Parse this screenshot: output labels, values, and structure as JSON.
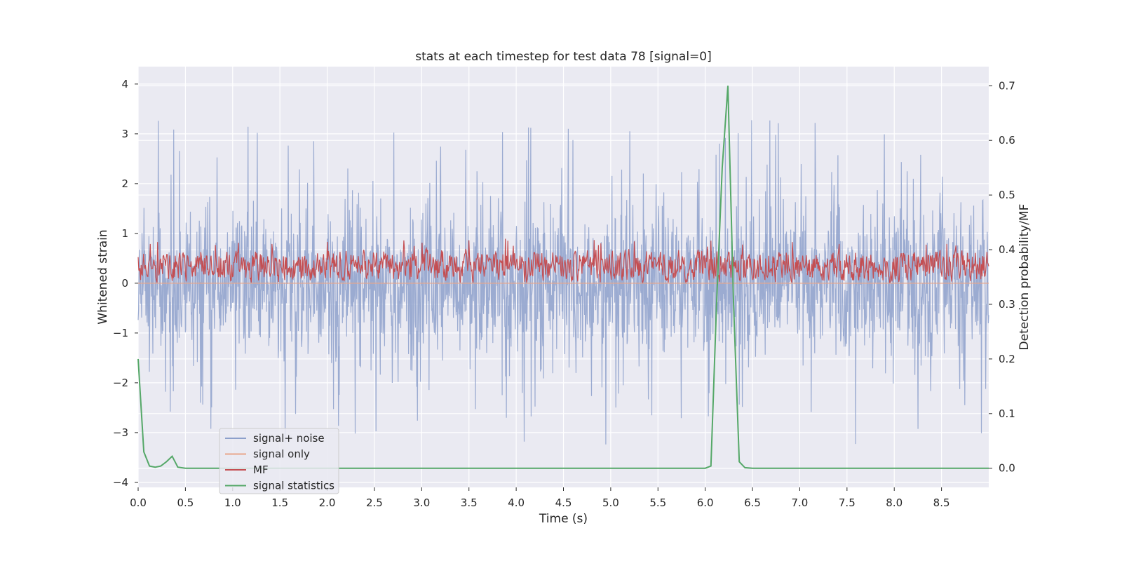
{
  "chart_data": {
    "type": "line",
    "title": "stats at each timestep for test data 78 [signal=0]",
    "xlabel": "Time (s)",
    "ylabel": "Whitened strain",
    "y2label": "Detection probability/MF",
    "xlim": [
      0.0,
      9.0
    ],
    "ylim": [
      -4.1,
      4.35
    ],
    "y2lim": [
      -0.035,
      0.735
    ],
    "xticks": [
      "0.0",
      "0.5",
      "1.0",
      "1.5",
      "2.0",
      "2.5",
      "3.0",
      "3.5",
      "4.0",
      "4.5",
      "5.0",
      "5.5",
      "6.0",
      "6.5",
      "7.0",
      "7.5",
      "8.0",
      "8.5"
    ],
    "yticks": [
      "4",
      "3",
      "2",
      "1",
      "0",
      "−1",
      "−2",
      "−3",
      "−4"
    ],
    "y2ticks": [
      "0.7",
      "0.6",
      "0.5",
      "0.4",
      "0.3",
      "0.2",
      "0.1",
      "0.0"
    ],
    "grid": true,
    "legend_position": "lower-left",
    "colors": {
      "signal_noise": "#8da0cb",
      "signal_only": "#e8a58a",
      "mf": "#c44e52",
      "stats": "#55a868",
      "background": "#eaeaf2",
      "grid": "#ffffff"
    },
    "series": [
      {
        "name": "signal+ noise",
        "axis": "left",
        "description_values": "noise band approx ±1.7 with spikes",
        "range": [
          -3.7,
          4.0
        ],
        "n_points": 2200
      },
      {
        "name": "signal only",
        "axis": "left",
        "values_const": 0.0
      },
      {
        "name": "MF",
        "axis": "right",
        "range": [
          0.34,
          0.42
        ],
        "n_points": 1400
      },
      {
        "name": "signal statistics",
        "axis": "right",
        "x": [
          0.0,
          0.06,
          0.12,
          0.18,
          0.24,
          0.3,
          0.36,
          0.42,
          0.5,
          0.6,
          1.0,
          2.0,
          3.0,
          4.0,
          5.0,
          6.0,
          6.06,
          6.12,
          6.18,
          6.24,
          6.3,
          6.36,
          6.42,
          6.5,
          7.0,
          8.0,
          9.0
        ],
        "y": [
          0.2,
          0.03,
          0.004,
          0.002,
          0.004,
          0.012,
          0.022,
          0.002,
          0.0,
          0.0,
          0.0,
          0.0,
          0.0,
          0.0,
          0.0,
          0.0,
          0.004,
          0.3,
          0.55,
          0.7,
          0.3,
          0.012,
          0.001,
          0.0,
          0.0,
          0.0,
          0.0
        ]
      }
    ]
  }
}
